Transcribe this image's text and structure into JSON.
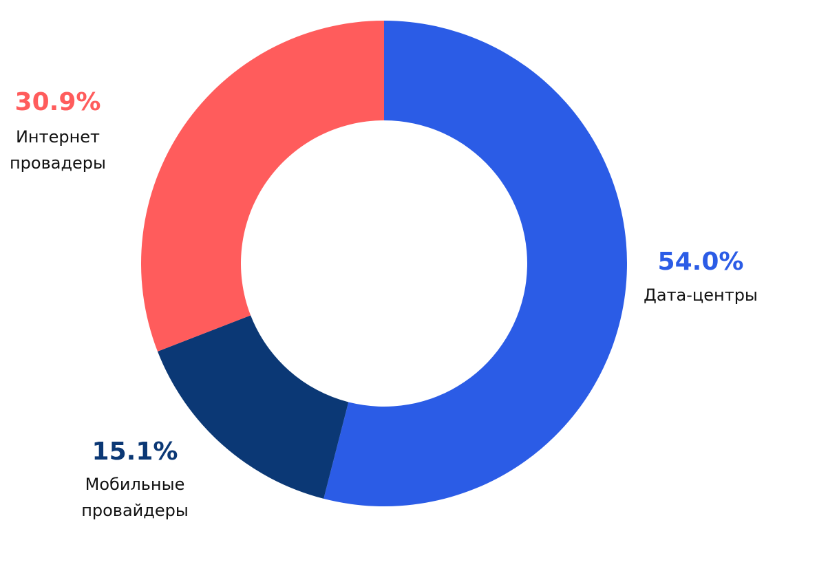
{
  "chart_data": {
    "type": "pie",
    "variant": "donut",
    "start_angle_deg": 0,
    "direction": "clockwise",
    "slices": [
      {
        "id": "data-centers",
        "value": 54.0,
        "percent_label": "54.0%",
        "label_lines": [
          "Дата-центры"
        ],
        "color": "#2b5ce6"
      },
      {
        "id": "mobile-providers",
        "value": 15.1,
        "percent_label": "15.1%",
        "label_lines": [
          "Мобильные",
          "провайдеры"
        ],
        "color": "#0b3875"
      },
      {
        "id": "internet-providers",
        "value": 30.9,
        "percent_label": "30.9%",
        "label_lines": [
          "Интернет",
          "провадеры"
        ],
        "color": "#ff5c5c"
      }
    ],
    "legend": "none"
  }
}
